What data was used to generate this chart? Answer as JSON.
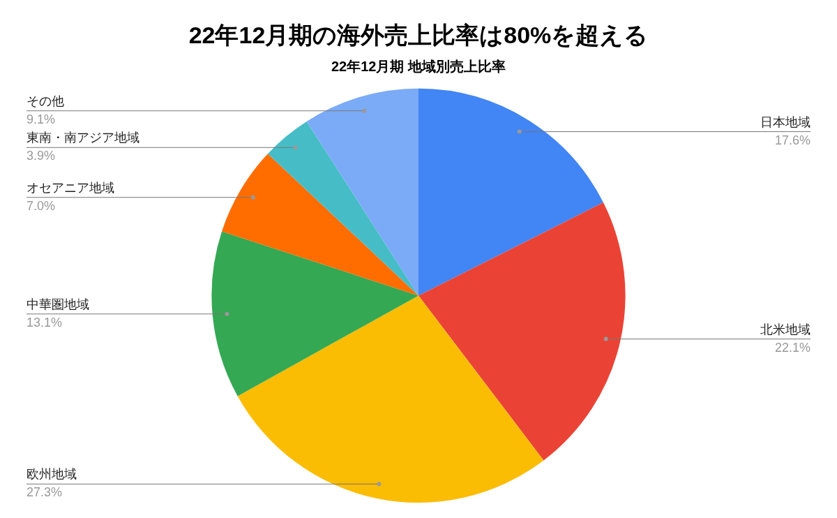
{
  "chart_data": {
    "type": "pie",
    "title": "22年12月期の海外売上比率は80%を超える",
    "subtitle": "22年12月期 地域別売上比率",
    "categories": [
      "日本地域",
      "北米地域",
      "欧州地域",
      "中華圏地域",
      "オセアニア地域",
      "東南・南アジア地域",
      "その他"
    ],
    "values": [
      17.6,
      22.1,
      27.3,
      13.1,
      7.0,
      3.9,
      9.1
    ],
    "colors": [
      "#4285f4",
      "#ea4335",
      "#fbbc04",
      "#34a853",
      "#ff6d01",
      "#46bdc6",
      "#7baaf7"
    ],
    "value_labels": [
      "17.6%",
      "22.1%",
      "27.3%",
      "13.1%",
      "7.0%",
      "3.9%",
      "9.1%"
    ],
    "legend": false
  }
}
